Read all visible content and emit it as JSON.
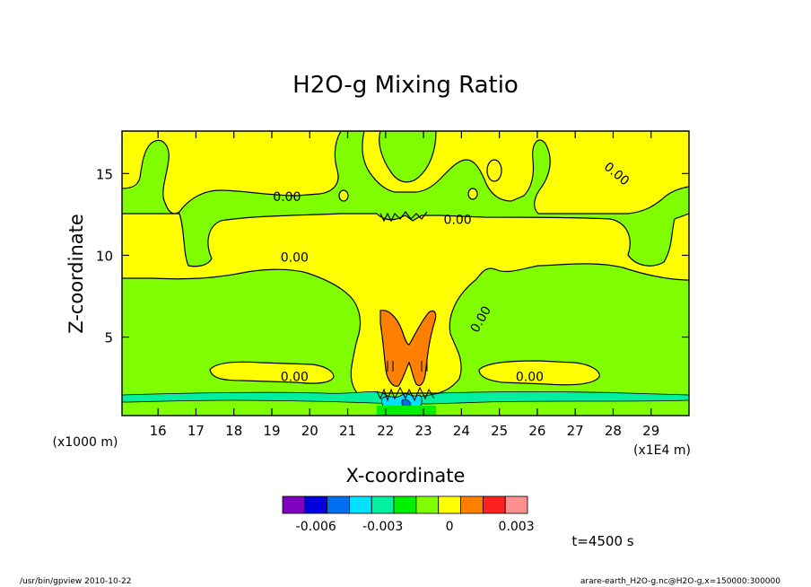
{
  "chart_data": {
    "type": "heatmap",
    "title": "H2O-g Mixing Ratio",
    "xlabel": "X-coordinate",
    "ylabel": "Z-coordinate",
    "x_unit": "(x1E4 m)",
    "y_unit": "(x1000 m)",
    "xlim": [
      15.05,
      30.0
    ],
    "ylim": [
      0.2,
      17.6
    ],
    "x_ticks": [
      16,
      17,
      18,
      19,
      20,
      21,
      22,
      23,
      24,
      25,
      26,
      27,
      28,
      29
    ],
    "y_ticks": [
      5,
      10,
      15
    ],
    "contour_labels": [
      {
        "text": "0.00",
        "x": 19.4,
        "y": 13.6
      },
      {
        "text": "0.00",
        "x": 23.9,
        "y": 12.2
      },
      {
        "text": "0.00",
        "x": 19.6,
        "y": 9.9
      },
      {
        "text": "0.00",
        "x": 28.1,
        "y": 15.0,
        "rotate": 40
      },
      {
        "text": "0.00",
        "x": 24.5,
        "y": 6.1,
        "rotate": -60
      },
      {
        "text": "0.00",
        "x": 19.6,
        "y": 2.6
      },
      {
        "text": "0.00",
        "x": 25.8,
        "y": 2.6
      }
    ],
    "colorbar": {
      "colors": [
        "#8000c0",
        "#0000e0",
        "#0070f0",
        "#00e0ff",
        "#00f0a0",
        "#00f000",
        "#80ff00",
        "#ffff00",
        "#ff8000",
        "#ff2020",
        "#ff9090"
      ],
      "tick_labels": [
        "-0.006",
        "-0.003",
        "0",
        "0.003"
      ],
      "tick_values": [
        -0.006,
        -0.003,
        0,
        0.003
      ]
    },
    "colors": {
      "background": "#80ff00",
      "positive": "#ffff00",
      "high": "#ff8000",
      "low": "#00f0a0"
    }
  },
  "annotations": {
    "time": "t=4500 s",
    "footer_left": "/usr/bin/gpview  2010-10-22",
    "footer_right": "arare-earth_H2O-g.nc@H2O-g,x=150000:300000"
  }
}
